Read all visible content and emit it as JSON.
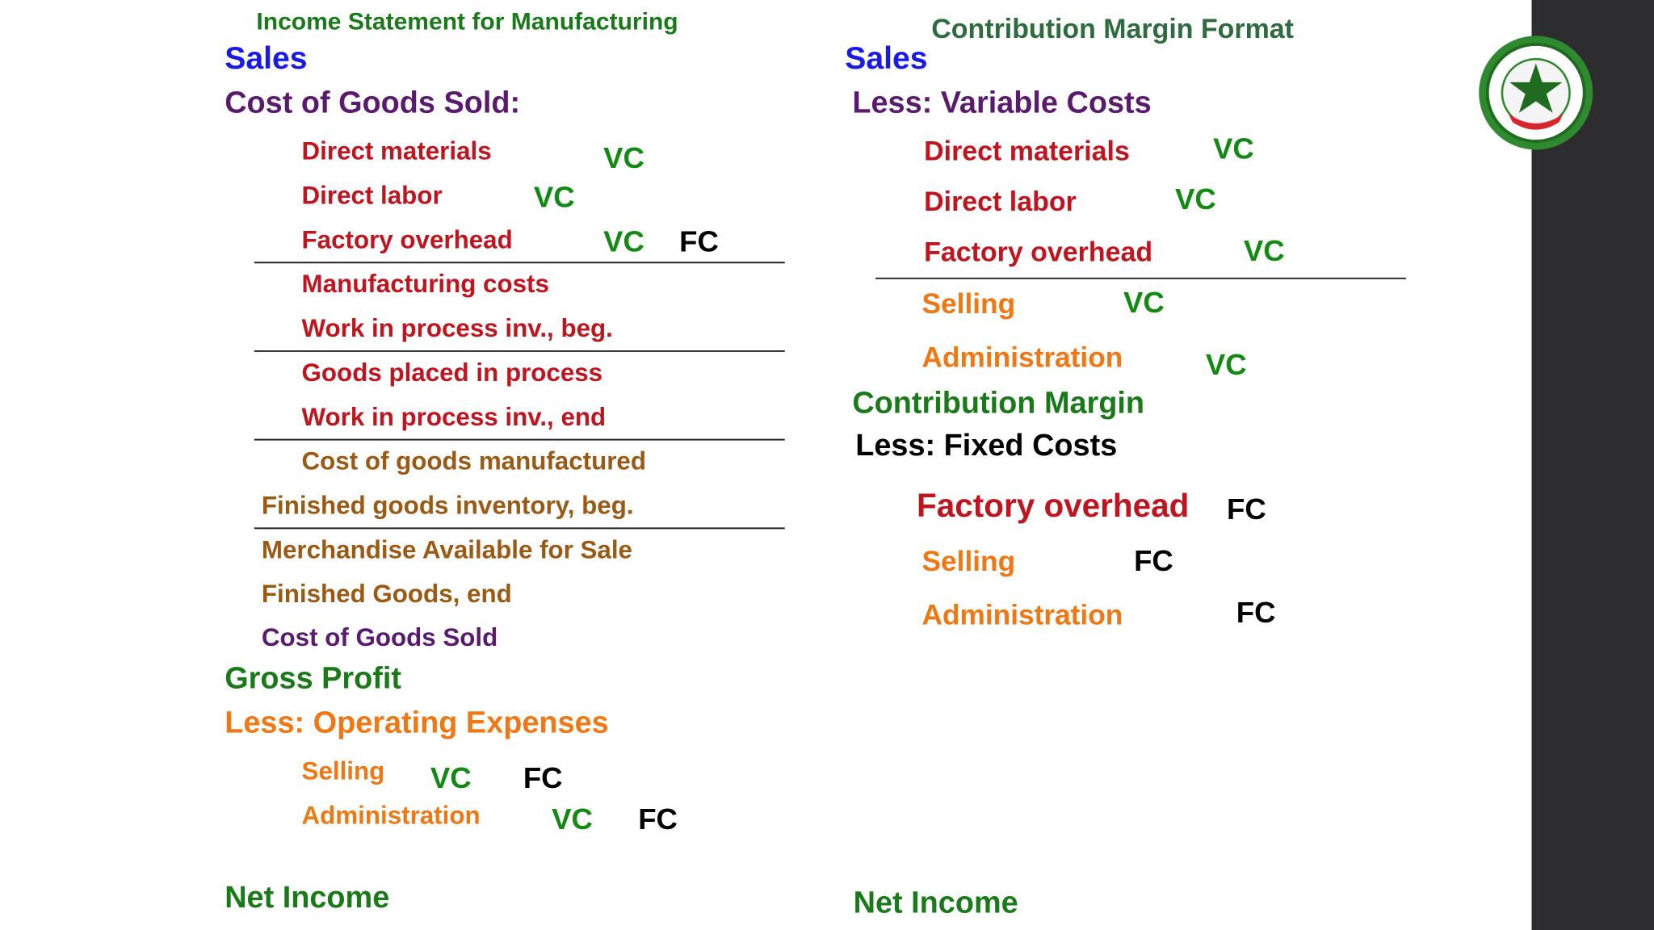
{
  "left": {
    "title": "Income Statement for Manufacturing",
    "lines": [
      {
        "text": "Sales",
        "tags": []
      },
      {
        "text": "Cost of Goods Sold:",
        "tags": []
      },
      {
        "text": "Direct materials",
        "tags": [
          "VC"
        ]
      },
      {
        "text": "Direct labor",
        "tags": [
          "VC"
        ]
      },
      {
        "text": "Factory overhead",
        "tags": [
          "VC",
          "FC"
        ]
      },
      {
        "text": "Manufacturing costs",
        "tags": []
      },
      {
        "text": "Work in process inv., beg.",
        "tags": []
      },
      {
        "text": "Goods placed in process",
        "tags": []
      },
      {
        "text": "Work in process inv., end",
        "tags": []
      },
      {
        "text": "Cost of goods manufactured",
        "tags": []
      },
      {
        "text": "Finished goods inventory, beg.",
        "tags": []
      },
      {
        "text": "Merchandise Available for Sale",
        "tags": []
      },
      {
        "text": "Finished Goods, end",
        "tags": []
      },
      {
        "text": "Cost of Goods Sold",
        "tags": []
      },
      {
        "text": "Gross Profit",
        "tags": []
      },
      {
        "text": "Less:  Operating Expenses",
        "tags": []
      },
      {
        "text": "Selling",
        "tags": [
          "VC",
          "FC"
        ]
      },
      {
        "text": "Administration",
        "tags": [
          "VC",
          "FC"
        ]
      },
      {
        "text": "Net Income",
        "tags": []
      }
    ]
  },
  "right": {
    "title": "Contribution Margin Format",
    "lines": [
      {
        "text": "Sales",
        "tags": []
      },
      {
        "text": "Less:  Variable Costs",
        "tags": []
      },
      {
        "text": "Direct materials",
        "tags": [
          "VC"
        ]
      },
      {
        "text": "Direct labor",
        "tags": [
          "VC"
        ]
      },
      {
        "text": "Factory overhead",
        "tags": [
          "VC"
        ]
      },
      {
        "text": "Selling",
        "tags": [
          "VC"
        ]
      },
      {
        "text": "Administration",
        "tags": [
          "VC"
        ]
      },
      {
        "text": "Contribution Margin",
        "tags": []
      },
      {
        "text": "Less:  Fixed Costs",
        "tags": []
      },
      {
        "text": "Factory overhead",
        "tags": [
          "FC"
        ]
      },
      {
        "text": "Selling",
        "tags": [
          "FC"
        ]
      },
      {
        "text": "Administration",
        "tags": [
          "FC"
        ]
      },
      {
        "text": "Net Income",
        "tags": []
      }
    ]
  }
}
